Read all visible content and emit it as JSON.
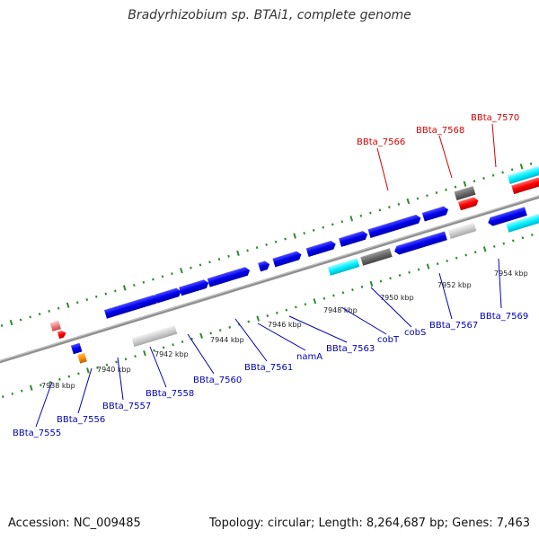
{
  "title": "Bradyrhizobium sp. BTAi1, complete genome",
  "footer": {
    "accession": "Accession: NC_009485",
    "summary": "Topology: circular; Length: 8,264,687 bp; Genes: 7,463"
  },
  "colors": {
    "backbone": "#8f8f8f",
    "ticks": "#2e8b2e",
    "highlight_label": "#d40000",
    "label": "#0000b4"
  },
  "scale_labels": [
    "7938 kbp",
    "7940 kbp",
    "7942 kbp",
    "7944 kbp",
    "7946 kbp",
    "7948 kbp",
    "7950 kbp",
    "7952 kbp",
    "7954 kbp"
  ],
  "labels_upper": [
    {
      "name": "BBta_7566"
    },
    {
      "name": "BBta_7568"
    },
    {
      "name": "BBta_7570"
    }
  ],
  "labels_lower": [
    {
      "name": "BBta_7555"
    },
    {
      "name": "BBta_7556"
    },
    {
      "name": "BBta_7557"
    },
    {
      "name": "BBta_7558"
    },
    {
      "name": "BBta_7560"
    },
    {
      "name": "BBta_7561"
    },
    {
      "name": "namA"
    },
    {
      "name": "BBta_7563"
    },
    {
      "name": "cobT"
    },
    {
      "name": "cobS"
    },
    {
      "name": "BBta_7567"
    },
    {
      "name": "BBta_7569"
    }
  ]
}
